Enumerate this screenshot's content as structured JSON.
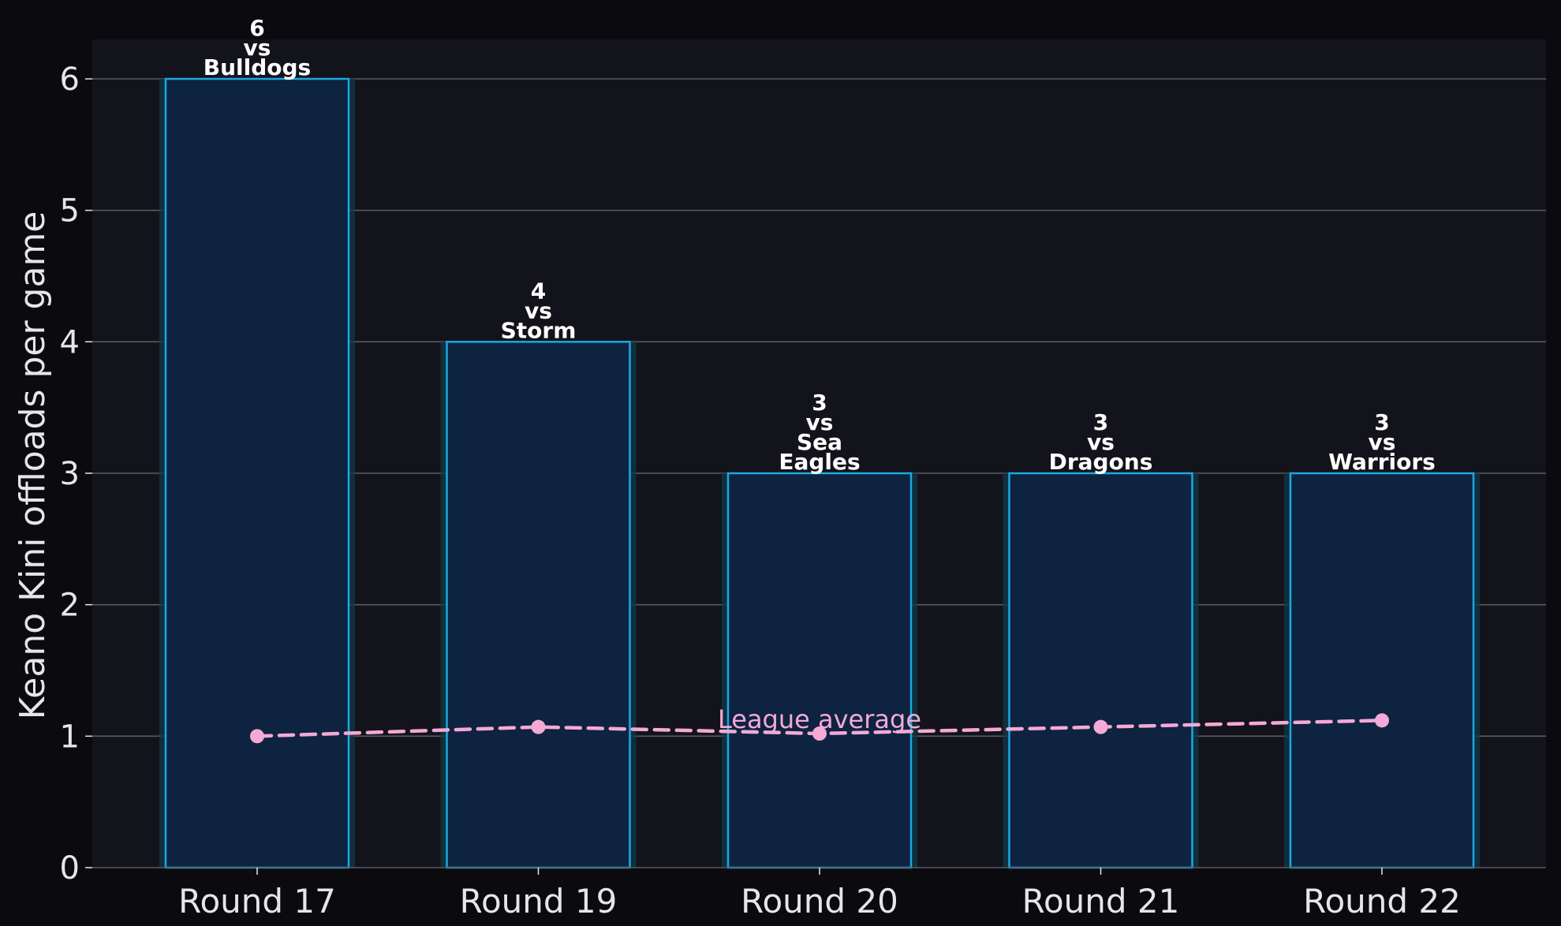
{
  "chart_data": {
    "type": "bar",
    "title": "",
    "xlabel": "",
    "ylabel": "Keano Kini offloads per game",
    "ylim": [
      0,
      6.3
    ],
    "yticks": [
      0,
      1,
      2,
      3,
      4,
      5,
      6
    ],
    "grid": true,
    "categories": [
      "Round 17",
      "Round 19",
      "Round 20",
      "Round 21",
      "Round 22"
    ],
    "values": [
      6,
      4,
      3,
      3,
      3
    ],
    "bar_labels": [
      [
        "6",
        "vs",
        "Bulldogs"
      ],
      [
        "4",
        "vs",
        "Storm"
      ],
      [
        "3",
        "vs",
        "Sea",
        "Eagles"
      ],
      [
        "3",
        "vs",
        "Dragons"
      ],
      [
        "3",
        "vs",
        "Warriors"
      ]
    ],
    "overlay_line": {
      "annotation": "League average",
      "values": [
        1.0,
        1.07,
        1.02,
        1.07,
        1.12
      ],
      "style": "dashed"
    },
    "colors": {
      "page_background": "#0b0b0f",
      "plot_background": "#13131b",
      "bar_fill": "#0d2340",
      "bar_edge": "#1ea7e0",
      "bar_glow": "#0f3a4a",
      "grid": "#5a5a60",
      "line": "#f5a9d6",
      "text": "#e6e6ea",
      "bar_label": "#ffffff"
    }
  }
}
